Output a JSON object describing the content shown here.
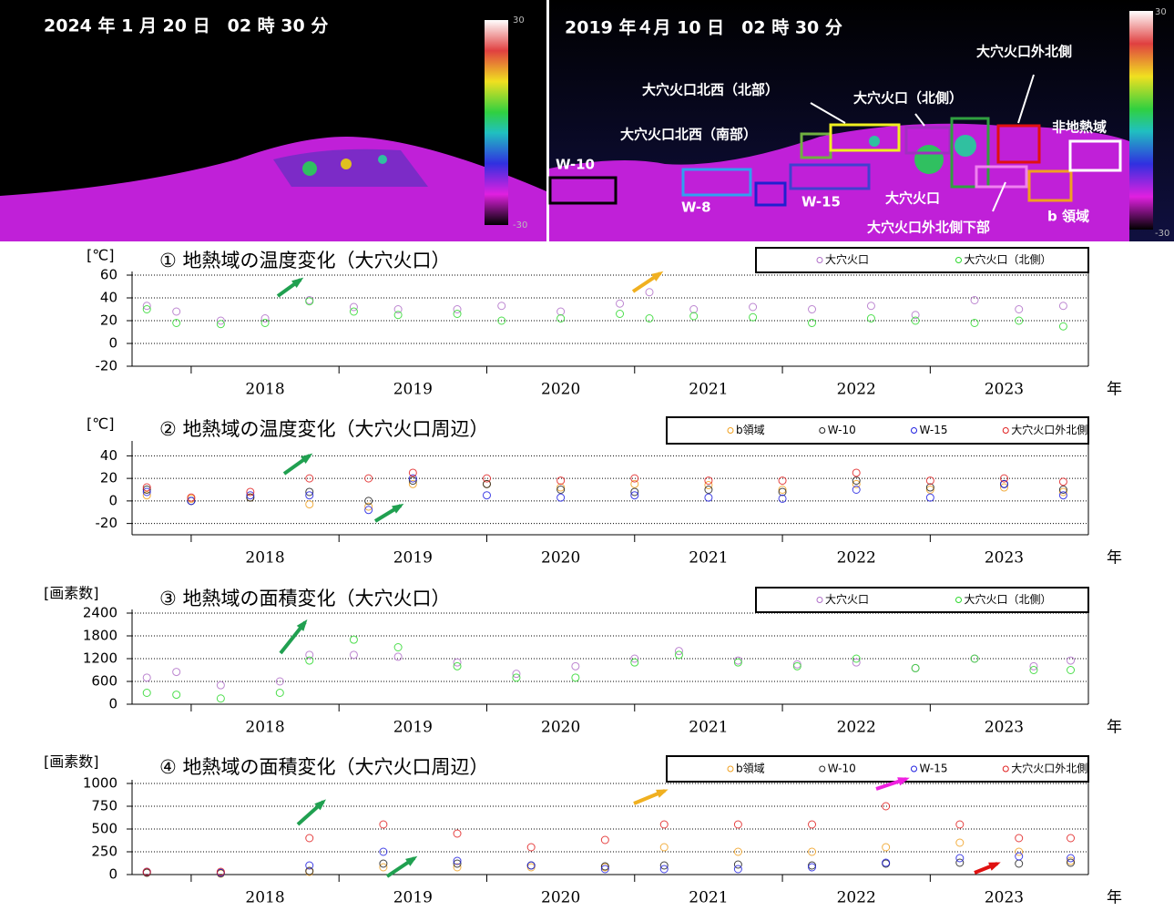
{
  "images": [
    {
      "timestamp": "2024 年 1 月 20 日　02 時 30 分",
      "colorbar_max": 30,
      "colorbar_min": -30
    },
    {
      "timestamp": "2019 年４月 10 日　02 時 30 分",
      "colorbar_max": 30,
      "colorbar_min": -30,
      "regions": [
        "W-10",
        "W-8",
        "W-15",
        "大穴火口北西（北部）",
        "大穴火口北西（南部）",
        "大穴火口（北側）",
        "大穴火口外北側",
        "非地熱域",
        "大穴火口",
        "大穴火口外北側下部",
        "b 領域"
      ]
    }
  ],
  "chart_data": [
    {
      "type": "scatter",
      "title": "① 地熱域の温度変化（大穴火口）",
      "y_unit": "[℃]",
      "x_unit": "年",
      "xlim": [
        2017.6,
        2024.07
      ],
      "xticks": [
        2018,
        2019,
        2020,
        2021,
        2022,
        2023
      ],
      "ylim": [
        -20,
        60
      ],
      "yticks": [
        -20,
        0,
        20,
        40,
        60
      ],
      "grid": true,
      "series": [
        {
          "name": "大穴火口",
          "color": "#b070c8",
          "x": [
            2017.7,
            2017.9,
            2018.2,
            2018.5,
            2018.8,
            2019.1,
            2019.4,
            2019.8,
            2020.1,
            2020.5,
            2020.9,
            2021.1,
            2021.4,
            2021.8,
            2022.2,
            2022.6,
            2022.9,
            2023.3,
            2023.6,
            2023.9
          ],
          "values": [
            33,
            28,
            20,
            22,
            38,
            32,
            30,
            30,
            33,
            28,
            35,
            45,
            30,
            32,
            30,
            33,
            25,
            38,
            30,
            33
          ]
        },
        {
          "name": "大穴火口（北側）",
          "color": "#2ed82e",
          "x": [
            2017.7,
            2017.9,
            2018.2,
            2018.5,
            2018.8,
            2019.1,
            2019.4,
            2019.8,
            2020.1,
            2020.5,
            2020.9,
            2021.1,
            2021.4,
            2021.8,
            2022.2,
            2022.6,
            2022.9,
            2023.3,
            2023.6,
            2023.9
          ],
          "values": [
            30,
            18,
            17,
            18,
            37,
            28,
            25,
            26,
            20,
            22,
            26,
            22,
            24,
            23,
            18,
            22,
            20,
            18,
            20,
            15
          ]
        }
      ]
    },
    {
      "type": "scatter",
      "title": "② 地熱域の温度変化（大穴火口周辺）",
      "y_unit": "[℃]",
      "x_unit": "年",
      "xlim": [
        2017.6,
        2024.07
      ],
      "xticks": [
        2018,
        2019,
        2020,
        2021,
        2022,
        2023
      ],
      "ylim": [
        -30,
        50
      ],
      "yticks": [
        -20,
        0,
        20,
        40
      ],
      "grid": true,
      "series": [
        {
          "name": "b領域",
          "color": "#f0a020",
          "x": [
            2017.7,
            2018.0,
            2018.4,
            2018.8,
            2019.2,
            2019.5,
            2020.0,
            2020.5,
            2021.0,
            2021.5,
            2022.0,
            2022.5,
            2023.0,
            2023.5,
            2023.9
          ],
          "values": [
            5,
            2,
            3,
            -3,
            -5,
            15,
            15,
            12,
            15,
            14,
            10,
            15,
            10,
            12,
            8
          ]
        },
        {
          "name": "W-10",
          "color": "#202020",
          "x": [
            2017.7,
            2018.0,
            2018.4,
            2018.8,
            2019.2,
            2019.5,
            2020.0,
            2020.5,
            2021.0,
            2021.5,
            2022.0,
            2022.5,
            2023.0,
            2023.5,
            2023.9
          ],
          "values": [
            10,
            0,
            3,
            8,
            0,
            18,
            15,
            10,
            8,
            10,
            8,
            18,
            12,
            15,
            10
          ]
        },
        {
          "name": "W-15",
          "color": "#2020e0",
          "x": [
            2017.7,
            2018.0,
            2018.4,
            2018.8,
            2019.2,
            2019.5,
            2020.0,
            2020.5,
            2021.0,
            2021.5,
            2022.0,
            2022.5,
            2023.0,
            2023.5,
            2023.9
          ],
          "values": [
            8,
            0,
            5,
            5,
            -8,
            20,
            5,
            3,
            5,
            3,
            2,
            10,
            3,
            15,
            5
          ]
        },
        {
          "name": "大穴火口外北側",
          "color": "#e02020",
          "x": [
            2017.7,
            2018.0,
            2018.4,
            2018.8,
            2019.2,
            2019.5,
            2020.0,
            2020.5,
            2021.0,
            2021.5,
            2022.0,
            2022.5,
            2023.0,
            2023.5,
            2023.9
          ],
          "values": [
            12,
            3,
            8,
            20,
            20,
            25,
            20,
            18,
            20,
            18,
            18,
            25,
            18,
            20,
            17
          ]
        }
      ]
    },
    {
      "type": "scatter",
      "title": "③ 地熱域の面積変化（大穴火口）",
      "y_unit": "[画素数]",
      "x_unit": "年",
      "xlim": [
        2017.6,
        2024.07
      ],
      "xticks": [
        2018,
        2019,
        2020,
        2021,
        2022,
        2023
      ],
      "ylim": [
        0,
        2400
      ],
      "yticks": [
        0,
        600,
        1200,
        1800,
        2400
      ],
      "grid": true,
      "series": [
        {
          "name": "大穴火口",
          "color": "#b070c8",
          "x": [
            2017.7,
            2017.9,
            2018.2,
            2018.6,
            2018.8,
            2019.1,
            2019.4,
            2019.8,
            2020.2,
            2020.6,
            2021.0,
            2021.3,
            2021.7,
            2022.1,
            2022.5,
            2022.9,
            2023.3,
            2023.7,
            2023.95
          ],
          "values": [
            700,
            850,
            500,
            600,
            1300,
            1300,
            1250,
            1100,
            800,
            1000,
            1200,
            1400,
            1150,
            1050,
            1100,
            950,
            1200,
            1000,
            1150
          ]
        },
        {
          "name": "大穴火口（北側）",
          "color": "#2ed82e",
          "x": [
            2017.7,
            2017.9,
            2018.2,
            2018.6,
            2018.8,
            2019.1,
            2019.4,
            2019.8,
            2020.2,
            2020.6,
            2021.0,
            2021.3,
            2021.7,
            2022.1,
            2022.5,
            2022.9,
            2023.3,
            2023.7,
            2023.95
          ],
          "values": [
            300,
            250,
            150,
            300,
            1150,
            1700,
            1500,
            1000,
            700,
            700,
            1100,
            1300,
            1100,
            1000,
            1200,
            950,
            1200,
            900,
            900
          ]
        }
      ]
    },
    {
      "type": "scatter",
      "title": "④ 地熱域の面積変化（大穴火口周辺）",
      "y_unit": "[画素数]",
      "x_unit": "年",
      "xlim": [
        2017.6,
        2024.07
      ],
      "xticks": [
        2018,
        2019,
        2020,
        2021,
        2022,
        2023
      ],
      "ylim": [
        0,
        1000
      ],
      "yticks": [
        0,
        250,
        500,
        750,
        1000
      ],
      "grid": true,
      "series": [
        {
          "name": "b領域",
          "color": "#f0a020",
          "x": [
            2017.7,
            2018.2,
            2018.8,
            2019.3,
            2019.8,
            2020.3,
            2020.8,
            2021.2,
            2021.7,
            2022.2,
            2022.7,
            2023.2,
            2023.6,
            2023.95
          ],
          "values": [
            20,
            10,
            30,
            80,
            80,
            80,
            80,
            300,
            250,
            250,
            300,
            350,
            250,
            150
          ]
        },
        {
          "name": "W-10",
          "color": "#202020",
          "x": [
            2017.7,
            2018.2,
            2018.8,
            2019.3,
            2019.8,
            2020.3,
            2020.8,
            2021.2,
            2021.7,
            2022.2,
            2022.7,
            2023.2,
            2023.6,
            2023.95
          ],
          "values": [
            20,
            15,
            40,
            120,
            120,
            100,
            90,
            100,
            110,
            100,
            120,
            130,
            120,
            130
          ]
        },
        {
          "name": "W-15",
          "color": "#2020e0",
          "x": [
            2017.7,
            2018.2,
            2018.8,
            2019.3,
            2019.8,
            2020.3,
            2020.8,
            2021.2,
            2021.7,
            2022.2,
            2022.7,
            2023.2,
            2023.6,
            2023.95
          ],
          "values": [
            30,
            20,
            100,
            250,
            150,
            100,
            60,
            60,
            60,
            80,
            130,
            180,
            200,
            180
          ]
        },
        {
          "name": "大穴火口外北側",
          "color": "#e02020",
          "x": [
            2017.7,
            2018.2,
            2018.8,
            2019.3,
            2019.8,
            2020.3,
            2020.8,
            2021.2,
            2021.7,
            2022.2,
            2022.7,
            2023.2,
            2023.6,
            2023.95
          ],
          "values": [
            30,
            30,
            400,
            550,
            450,
            300,
            380,
            550,
            550,
            550,
            750,
            550,
            400,
            400
          ]
        }
      ]
    }
  ]
}
